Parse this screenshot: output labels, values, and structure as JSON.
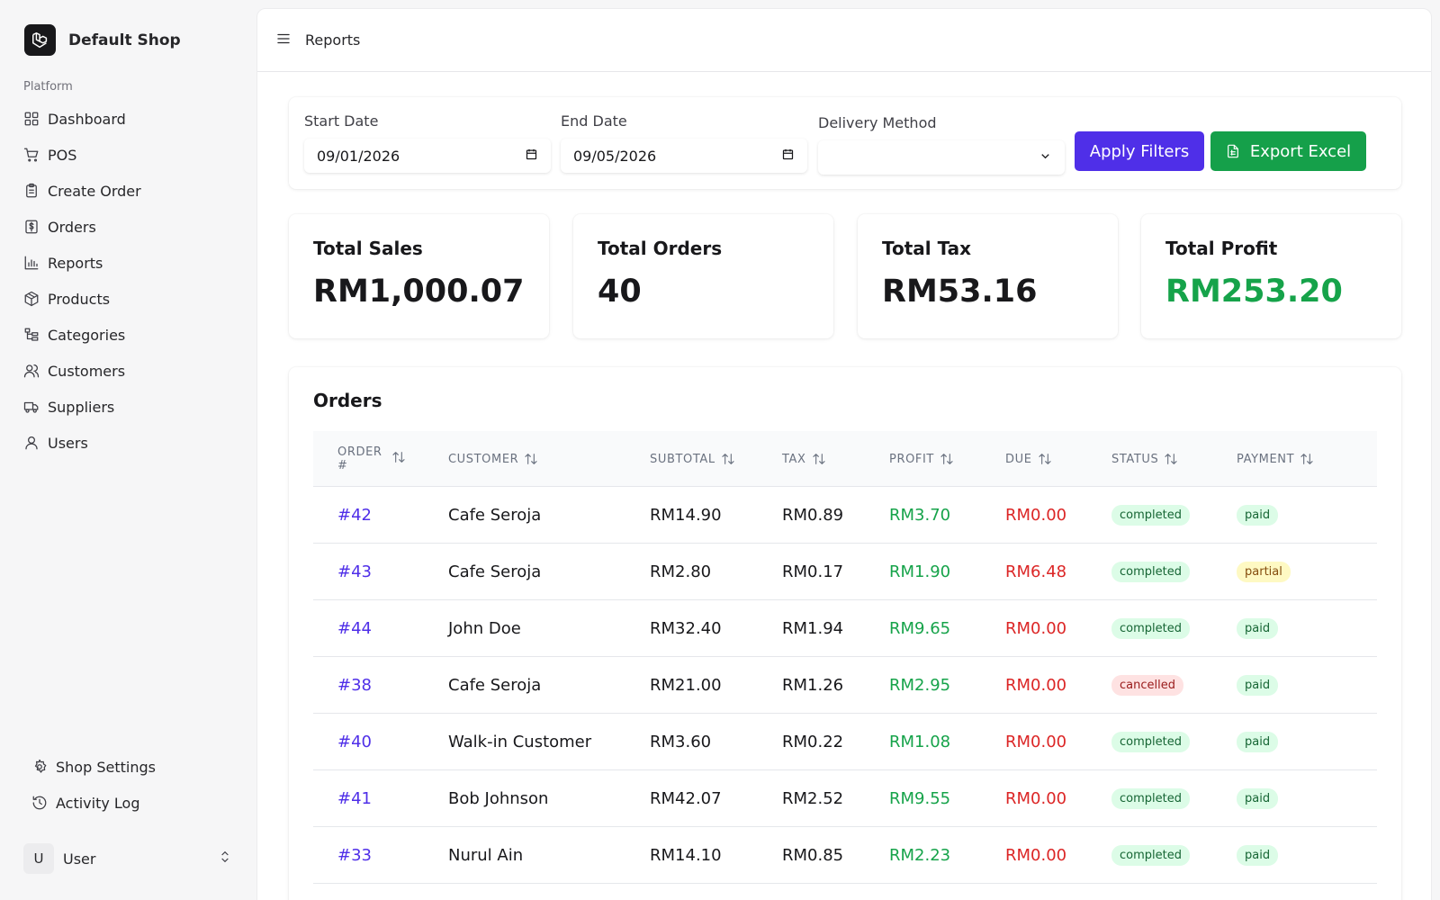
{
  "sidebar": {
    "brand": "Default Shop",
    "section_label": "Platform",
    "items": [
      {
        "label": "Dashboard",
        "icon": "dashboard-icon"
      },
      {
        "label": "POS",
        "icon": "cart-icon"
      },
      {
        "label": "Create Order",
        "icon": "clipboard-icon"
      },
      {
        "label": "Orders",
        "icon": "receipt-icon"
      },
      {
        "label": "Reports",
        "icon": "bar-chart-icon"
      },
      {
        "label": "Products",
        "icon": "package-icon"
      },
      {
        "label": "Categories",
        "icon": "hierarchy-icon"
      },
      {
        "label": "Customers",
        "icon": "users-icon"
      },
      {
        "label": "Suppliers",
        "icon": "truck-icon"
      },
      {
        "label": "Users",
        "icon": "user-icon"
      }
    ],
    "bottom_items": [
      {
        "label": "Shop Settings",
        "icon": "gear-icon"
      },
      {
        "label": "Activity Log",
        "icon": "history-icon"
      }
    ],
    "user": {
      "initial": "U",
      "name": "User"
    }
  },
  "header": {
    "title": "Reports"
  },
  "filters": {
    "start_label": "Start Date",
    "start_value": "09/01/2026",
    "end_label": "End Date",
    "end_value": "09/05/2026",
    "delivery_label": "Delivery Method",
    "delivery_value": "",
    "apply_label": "Apply Filters",
    "export_label": "Export Excel"
  },
  "stats": {
    "sales_label": "Total Sales",
    "sales_value": "RM1,000.07",
    "orders_label": "Total Orders",
    "orders_value": "40",
    "tax_label": "Total Tax",
    "tax_value": "RM53.16",
    "profit_label": "Total Profit",
    "profit_value": "RM253.20",
    "profit_color": "#16a34a"
  },
  "orders": {
    "title": "Orders",
    "columns": {
      "order_line1": "ORDER",
      "order_line2": "#",
      "customer": "CUSTOMER",
      "subtotal": "SUBTOTAL",
      "tax": "TAX",
      "profit": "PROFIT",
      "due": "DUE",
      "status": "STATUS",
      "payment": "PAYMENT"
    },
    "rows": [
      {
        "order": "#42",
        "customer": "Cafe Seroja",
        "subtotal": "RM14.90",
        "tax": "RM0.89",
        "profit": "RM3.70",
        "due": "RM0.00",
        "status": "completed",
        "payment": "paid"
      },
      {
        "order": "#43",
        "customer": "Cafe Seroja",
        "subtotal": "RM2.80",
        "tax": "RM0.17",
        "profit": "RM1.90",
        "due": "RM6.48",
        "status": "completed",
        "payment": "partial"
      },
      {
        "order": "#44",
        "customer": "John Doe",
        "subtotal": "RM32.40",
        "tax": "RM1.94",
        "profit": "RM9.65",
        "due": "RM0.00",
        "status": "completed",
        "payment": "paid"
      },
      {
        "order": "#38",
        "customer": "Cafe Seroja",
        "subtotal": "RM21.00",
        "tax": "RM1.26",
        "profit": "RM2.95",
        "due": "RM0.00",
        "status": "cancelled",
        "payment": "paid"
      },
      {
        "order": "#40",
        "customer": "Walk-in Customer",
        "subtotal": "RM3.60",
        "tax": "RM0.22",
        "profit": "RM1.08",
        "due": "RM0.00",
        "status": "completed",
        "payment": "paid"
      },
      {
        "order": "#41",
        "customer": "Bob Johnson",
        "subtotal": "RM42.07",
        "tax": "RM2.52",
        "profit": "RM9.55",
        "due": "RM0.00",
        "status": "completed",
        "payment": "paid"
      },
      {
        "order": "#33",
        "customer": "Nurul Ain",
        "subtotal": "RM14.10",
        "tax": "RM0.85",
        "profit": "RM2.23",
        "due": "RM0.00",
        "status": "completed",
        "payment": "paid"
      }
    ]
  },
  "colors": {
    "accent": "#4f2fe8",
    "export": "#15a04a",
    "profit": "#16a34a",
    "due": "#dc2626"
  }
}
